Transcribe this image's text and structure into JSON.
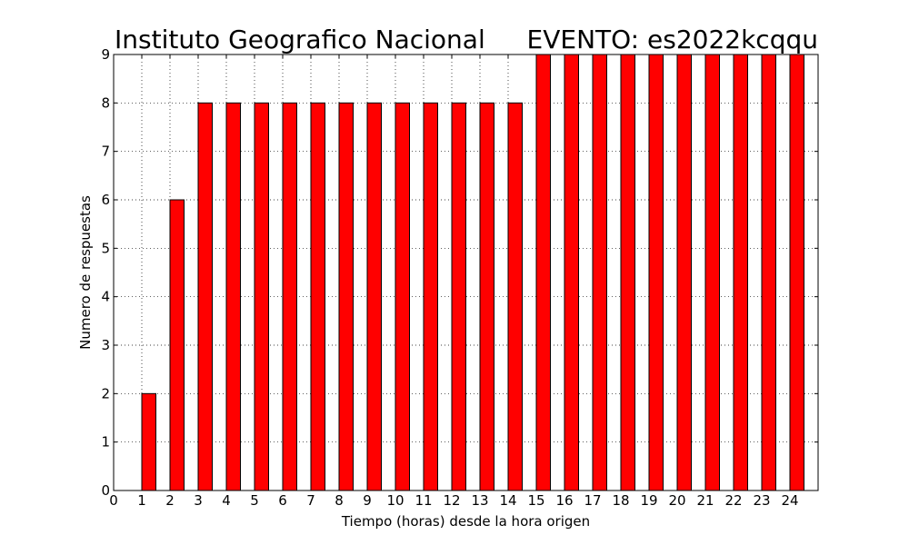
{
  "chart_data": {
    "type": "bar",
    "title_left": "Instituto Geografico Nacional",
    "title_right": "EVENTO: es2022kcqqu",
    "xlabel": "Tiempo (horas) desde la hora origen",
    "ylabel": "Numero de respuestas",
    "xlim": [
      0,
      25
    ],
    "ylim": [
      0,
      9
    ],
    "xticks": [
      0,
      1,
      2,
      3,
      4,
      5,
      6,
      7,
      8,
      9,
      10,
      11,
      12,
      13,
      14,
      15,
      16,
      17,
      18,
      19,
      20,
      21,
      22,
      23,
      24
    ],
    "yticks": [
      0,
      1,
      2,
      3,
      4,
      5,
      6,
      7,
      8,
      9
    ],
    "bar_width": 0.5,
    "x": [
      1,
      2,
      3,
      4,
      5,
      6,
      7,
      8,
      9,
      10,
      11,
      12,
      13,
      14,
      15,
      16,
      17,
      18,
      19,
      20,
      21,
      22,
      23,
      24
    ],
    "values": [
      2,
      6,
      8,
      8,
      8,
      8,
      8,
      8,
      8,
      8,
      8,
      8,
      8,
      8,
      9,
      9,
      9,
      9,
      9,
      9,
      9,
      9,
      9,
      9
    ],
    "grid": true,
    "bar_color": "#ff0000",
    "edge_color": "#000000"
  }
}
